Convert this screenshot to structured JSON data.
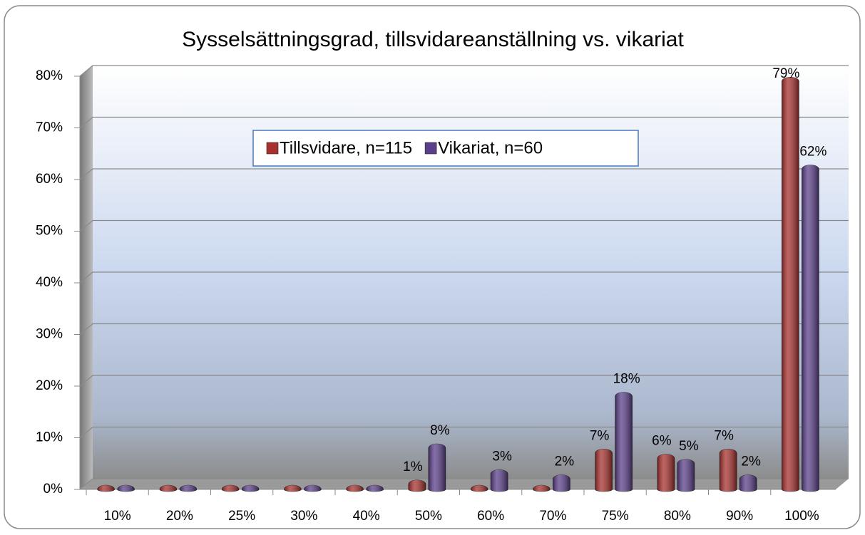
{
  "chart_data": {
    "type": "bar",
    "title": "Sysselsättningsgrad, tillsvidareanställning vs. vikariat",
    "categories": [
      "10%",
      "20%",
      "25%",
      "30%",
      "40%",
      "50%",
      "60%",
      "70%",
      "75%",
      "80%",
      "90%",
      "100%"
    ],
    "series": [
      {
        "name": "Tillsvidare, n=115",
        "color": "#a8312e",
        "values": [
          0,
          0,
          0,
          0,
          0,
          1,
          0,
          0,
          7,
          6,
          7,
          79
        ],
        "value_labels": [
          null,
          null,
          null,
          null,
          null,
          "1%",
          null,
          null,
          "7%",
          "6%",
          "7%",
          "79%"
        ]
      },
      {
        "name": "Vikariat, n=60",
        "color": "#5b3f8a",
        "values": [
          0,
          0,
          0,
          0,
          0,
          8,
          3,
          2,
          18,
          5,
          2,
          62
        ],
        "value_labels": [
          null,
          null,
          null,
          null,
          null,
          "8%",
          "3%",
          "2%",
          "18%",
          "5%",
          "2%",
          "62%"
        ]
      }
    ],
    "ylim": [
      0,
      80
    ],
    "yticks": [
      {
        "value": 0,
        "label": "0%"
      },
      {
        "value": 10,
        "label": "10%"
      },
      {
        "value": 20,
        "label": "20%"
      },
      {
        "value": 30,
        "label": "30%"
      },
      {
        "value": 40,
        "label": "40%"
      },
      {
        "value": 50,
        "label": "50%"
      },
      {
        "value": 60,
        "label": "60%"
      },
      {
        "value": 70,
        "label": "70%"
      },
      {
        "value": 80,
        "label": "80%"
      }
    ],
    "grid": true
  }
}
